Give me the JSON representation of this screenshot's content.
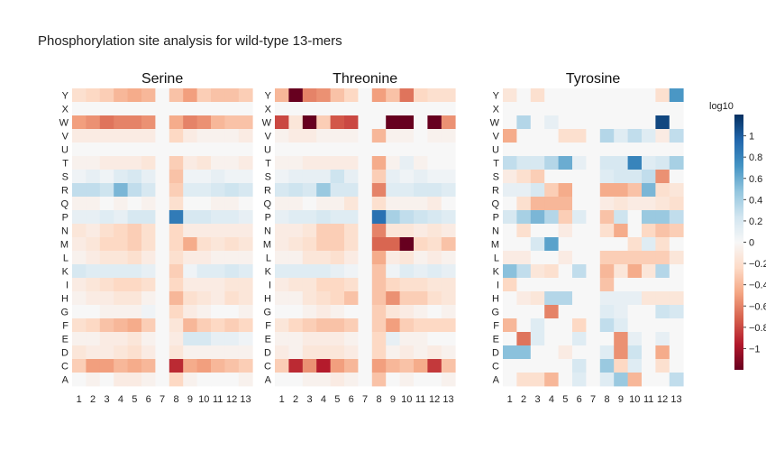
{
  "title": "Phosphorylation site analysis for wild-type 13-mers",
  "chart_data": {
    "type": "heatmap",
    "title": "Phosphorylation site analysis for wild-type 13-mers",
    "rows": [
      "Y",
      "X",
      "W",
      "V",
      "U",
      "T",
      "S",
      "R",
      "Q",
      "P",
      "N",
      "M",
      "L",
      "K",
      "I",
      "H",
      "G",
      "F",
      "E",
      "D",
      "C",
      "A"
    ],
    "columns": [
      "1",
      "2",
      "3",
      "4",
      "5",
      "6",
      "7",
      "8",
      "9",
      "10",
      "11",
      "12",
      "13"
    ],
    "colorbar": {
      "title": "log10",
      "range": [
        -1.2,
        1.2
      ],
      "ticks": [
        "1",
        "0.8",
        "0.6",
        "0.4",
        "0.2",
        "0",
        "−0.2",
        "−0.4",
        "−0.6",
        "−0.8",
        "−1"
      ],
      "tick_values": [
        1,
        0.8,
        0.6,
        0.4,
        0.2,
        0,
        -0.2,
        -0.4,
        -0.6,
        -0.8,
        -1
      ],
      "colorscale": "RdBu"
    },
    "panels": [
      {
        "name": "Serine",
        "values": [
          [
            -0.2,
            -0.25,
            -0.3,
            -0.4,
            -0.45,
            -0.4,
            0,
            -0.35,
            -0.5,
            -0.3,
            -0.35,
            -0.35,
            -0.3
          ],
          [
            0,
            0,
            0,
            0,
            0,
            0,
            0,
            0,
            0,
            0,
            0,
            0,
            0
          ],
          [
            -0.5,
            -0.55,
            -0.65,
            -0.6,
            -0.6,
            -0.55,
            0,
            -0.45,
            -0.6,
            -0.55,
            -0.4,
            -0.35,
            -0.35
          ],
          [
            -0.1,
            -0.1,
            -0.1,
            -0.1,
            -0.1,
            -0.1,
            0,
            -0.25,
            -0.1,
            -0.05,
            -0.05,
            -0.05,
            -0.1
          ],
          [
            0,
            0,
            0,
            0,
            0,
            0,
            0,
            0,
            0,
            0,
            0,
            0,
            0
          ],
          [
            -0.05,
            -0.05,
            -0.1,
            -0.1,
            -0.1,
            -0.15,
            0,
            -0.3,
            -0.1,
            -0.15,
            -0.05,
            -0.05,
            -0.1
          ],
          [
            0.05,
            0.1,
            0.05,
            0.15,
            0.2,
            0.1,
            0,
            -0.35,
            0.05,
            0.05,
            0.1,
            0.05,
            0.05
          ],
          [
            0.3,
            0.3,
            0.25,
            0.55,
            0.3,
            0.2,
            0,
            -0.3,
            0.15,
            0.15,
            0.2,
            0.25,
            0.2
          ],
          [
            -0.05,
            -0.05,
            0,
            -0.05,
            0,
            -0.05,
            0,
            -0.2,
            0,
            0,
            -0.05,
            -0.05,
            0
          ],
          [
            0.1,
            0.1,
            0.15,
            0.1,
            0.2,
            0.2,
            0,
            0.85,
            0.2,
            0.2,
            0.15,
            0.15,
            0.1
          ],
          [
            -0.15,
            -0.1,
            -0.2,
            -0.25,
            -0.3,
            -0.2,
            0,
            -0.25,
            -0.1,
            -0.1,
            -0.1,
            -0.1,
            -0.1
          ],
          [
            -0.1,
            -0.15,
            -0.25,
            -0.25,
            -0.3,
            -0.2,
            0,
            -0.25,
            -0.45,
            -0.2,
            -0.15,
            -0.2,
            -0.15
          ],
          [
            -0.05,
            -0.1,
            -0.15,
            -0.15,
            -0.2,
            -0.1,
            0,
            -0.2,
            -0.1,
            -0.1,
            -0.05,
            -0.05,
            -0.05
          ],
          [
            0.2,
            0.15,
            0.15,
            0.15,
            0.15,
            0.1,
            0,
            -0.3,
            0.05,
            0.15,
            0.15,
            0.2,
            0.15
          ],
          [
            -0.1,
            -0.15,
            -0.2,
            -0.25,
            -0.25,
            -0.2,
            0,
            -0.25,
            -0.1,
            -0.1,
            -0.1,
            -0.15,
            -0.15
          ],
          [
            -0.05,
            -0.1,
            -0.1,
            -0.15,
            -0.15,
            -0.05,
            0,
            -0.4,
            -0.2,
            -0.15,
            -0.1,
            -0.2,
            -0.15
          ],
          [
            0,
            0,
            -0.05,
            -0.05,
            -0.05,
            0.05,
            0,
            -0.25,
            -0.1,
            -0.05,
            0,
            0,
            -0.05
          ],
          [
            -0.2,
            -0.25,
            -0.35,
            -0.4,
            -0.45,
            -0.3,
            0,
            -0.15,
            -0.4,
            -0.3,
            -0.25,
            -0.3,
            -0.25
          ],
          [
            -0.05,
            -0.05,
            -0.1,
            -0.1,
            -0.15,
            -0.05,
            0,
            -0.1,
            0.2,
            0.2,
            0.1,
            0.1,
            0.05
          ],
          [
            -0.15,
            -0.1,
            -0.1,
            -0.15,
            -0.2,
            -0.1,
            0,
            -0.15,
            -0.05,
            -0.05,
            -0.05,
            -0.05,
            -0.05
          ],
          [
            -0.3,
            -0.5,
            -0.5,
            -0.4,
            -0.45,
            -0.4,
            0,
            -0.9,
            -0.45,
            -0.5,
            -0.4,
            -0.35,
            -0.3
          ],
          [
            0,
            -0.05,
            0,
            -0.1,
            -0.1,
            -0.05,
            0,
            -0.25,
            -0.05,
            0,
            0,
            0,
            -0.05
          ]
        ]
      },
      {
        "name": "Threonine",
        "values": [
          [
            -0.4,
            -1.2,
            -0.6,
            -0.55,
            -0.35,
            -0.25,
            0,
            -0.5,
            -0.35,
            -0.65,
            -0.25,
            -0.2,
            -0.2
          ],
          [
            0,
            0,
            0,
            0,
            0,
            0,
            0,
            0,
            0,
            0,
            0,
            0,
            0
          ],
          [
            -0.8,
            -0.15,
            -1.2,
            -0.3,
            -0.75,
            -0.8,
            0,
            0,
            -1.2,
            -1.2,
            0,
            -1.2,
            -0.55
          ],
          [
            -0.05,
            -0.1,
            -0.1,
            -0.05,
            -0.05,
            -0.05,
            0,
            -0.4,
            -0.05,
            -0.05,
            0,
            -0.05,
            -0.05
          ],
          [
            0,
            0,
            0,
            0,
            0,
            0,
            0,
            0,
            0,
            0,
            0,
            0,
            0
          ],
          [
            -0.05,
            -0.05,
            -0.1,
            -0.1,
            -0.1,
            -0.1,
            0,
            -0.45,
            -0.05,
            0.1,
            -0.05,
            0,
            0
          ],
          [
            0.05,
            0.1,
            0.1,
            0.1,
            0.25,
            0.1,
            0,
            -0.3,
            0.1,
            0.05,
            0.1,
            0.05,
            0.05
          ],
          [
            0.2,
            0.25,
            0.2,
            0.45,
            0.2,
            0.2,
            0,
            -0.6,
            0.15,
            0.15,
            0.2,
            0.2,
            0.15
          ],
          [
            -0.05,
            -0.05,
            0,
            -0.05,
            -0.05,
            -0.15,
            0,
            -0.2,
            -0.05,
            -0.05,
            -0.05,
            -0.1,
            0
          ],
          [
            0.1,
            0.15,
            0.15,
            0.2,
            0.15,
            0.15,
            0,
            0.9,
            0.4,
            0.3,
            0.25,
            0.2,
            0.15
          ],
          [
            -0.1,
            -0.1,
            -0.15,
            -0.3,
            -0.3,
            -0.2,
            0,
            -0.6,
            -0.15,
            -0.15,
            -0.1,
            -0.15,
            -0.1
          ],
          [
            -0.1,
            -0.15,
            -0.2,
            -0.3,
            -0.3,
            -0.2,
            0,
            -0.7,
            -0.7,
            -1.3,
            -0.25,
            -0.2,
            -0.35
          ],
          [
            -0.05,
            -0.05,
            -0.15,
            -0.15,
            -0.2,
            -0.1,
            0,
            -0.45,
            -0.1,
            -0.15,
            -0.05,
            -0.1,
            -0.05
          ],
          [
            0.15,
            0.15,
            0.15,
            0.15,
            0.1,
            0.05,
            0,
            -0.35,
            0.05,
            0.15,
            0.1,
            0.15,
            0.1
          ],
          [
            -0.1,
            -0.15,
            -0.15,
            -0.25,
            -0.25,
            -0.2,
            0,
            -0.35,
            -0.25,
            -0.2,
            -0.2,
            -0.15,
            -0.15
          ],
          [
            -0.05,
            -0.05,
            -0.15,
            -0.2,
            -0.25,
            -0.35,
            0,
            -0.35,
            -0.55,
            -0.3,
            -0.3,
            -0.2,
            -0.15
          ],
          [
            0,
            0,
            -0.05,
            -0.1,
            -0.05,
            0,
            0,
            -0.3,
            -0.15,
            -0.1,
            -0.05,
            0,
            -0.05
          ],
          [
            -0.15,
            -0.25,
            -0.3,
            -0.35,
            -0.35,
            -0.3,
            0,
            -0.3,
            -0.5,
            -0.3,
            -0.25,
            -0.25,
            -0.25
          ],
          [
            -0.05,
            -0.05,
            -0.1,
            -0.1,
            -0.1,
            -0.05,
            0,
            -0.25,
            0.1,
            -0.05,
            -0.05,
            0,
            0
          ],
          [
            -0.1,
            -0.05,
            -0.15,
            -0.15,
            -0.15,
            -0.1,
            0,
            -0.25,
            -0.05,
            -0.1,
            -0.05,
            -0.1,
            -0.05
          ],
          [
            -0.3,
            -0.9,
            -0.55,
            -0.95,
            -0.5,
            -0.4,
            0,
            -0.5,
            -0.4,
            -0.35,
            -0.45,
            -0.85,
            -0.35
          ],
          [
            0,
            0,
            -0.05,
            -0.05,
            -0.1,
            -0.05,
            0,
            -0.35,
            0,
            -0.05,
            0,
            0,
            -0.05
          ]
        ]
      },
      {
        "name": "Tyrosine",
        "values": [
          [
            -0.15,
            0,
            -0.2,
            0,
            0,
            0,
            0,
            0,
            0,
            0,
            0,
            -0.2,
            0.7
          ],
          [
            0,
            0,
            0,
            0,
            0,
            0,
            0,
            0,
            0,
            0,
            0,
            0,
            0
          ],
          [
            0,
            0.35,
            0,
            0.1,
            0,
            0,
            0,
            0,
            0,
            0,
            0,
            1.1,
            0
          ],
          [
            -0.45,
            0,
            0,
            0,
            -0.2,
            -0.2,
            0,
            0.35,
            0.15,
            0.3,
            0.15,
            -0.1,
            0.3
          ],
          [
            0,
            0,
            0,
            0,
            0,
            0,
            0,
            0,
            0,
            0,
            0,
            0,
            0
          ],
          [
            0.3,
            0.2,
            0.2,
            0.35,
            0.6,
            0.1,
            0,
            0.2,
            0.2,
            0.8,
            0.15,
            0.2,
            0.4
          ],
          [
            -0.1,
            -0.2,
            -0.3,
            0,
            0,
            0,
            0,
            0.15,
            0.2,
            0.2,
            0.3,
            -0.55,
            0
          ],
          [
            0.1,
            0.1,
            0.2,
            -0.3,
            -0.45,
            0,
            0,
            -0.45,
            -0.45,
            -0.35,
            0.55,
            -0.2,
            -0.15
          ],
          [
            0,
            -0.2,
            -0.4,
            -0.4,
            -0.4,
            0,
            0,
            -0.1,
            -0.15,
            -0.1,
            -0.1,
            -0.15,
            -0.2
          ],
          [
            0.2,
            0.4,
            0.55,
            0.35,
            -0.3,
            0.15,
            0,
            -0.35,
            0.25,
            0,
            0.45,
            0.45,
            0.3
          ],
          [
            0,
            -0.2,
            0,
            0,
            -0.1,
            0,
            0,
            -0.2,
            -0.45,
            0,
            -0.25,
            -0.35,
            -0.3
          ],
          [
            0,
            0,
            0.2,
            0.65,
            0,
            0,
            0,
            0,
            0,
            -0.2,
            0.15,
            -0.2,
            0
          ],
          [
            -0.1,
            -0.1,
            0,
            0,
            -0.1,
            0,
            0,
            -0.3,
            -0.3,
            -0.3,
            -0.3,
            -0.3,
            -0.15
          ],
          [
            0.5,
            0.3,
            -0.15,
            -0.2,
            0,
            0.3,
            0,
            -0.4,
            -0.15,
            -0.45,
            -0.15,
            0.35,
            0
          ],
          [
            -0.25,
            0,
            0,
            0,
            0,
            0,
            0,
            -0.35,
            0,
            0,
            0,
            0,
            0
          ],
          [
            0,
            -0.1,
            -0.15,
            0.35,
            0.35,
            0,
            0,
            0.1,
            0.1,
            0.1,
            -0.15,
            -0.15,
            -0.15
          ],
          [
            0,
            0,
            0,
            -0.6,
            0,
            0,
            0,
            0.15,
            0.1,
            0,
            0,
            0.25,
            0.2
          ],
          [
            -0.4,
            0,
            0.15,
            0,
            0,
            -0.25,
            0,
            0.3,
            0.15,
            0,
            0,
            0,
            0
          ],
          [
            0,
            -0.65,
            0.15,
            0,
            0,
            0.15,
            0,
            0,
            -0.55,
            0.1,
            0,
            0.1,
            0
          ],
          [
            0.5,
            0.5,
            0,
            0,
            -0.1,
            0,
            0,
            0.15,
            -0.55,
            0.25,
            0,
            -0.45,
            0
          ],
          [
            0,
            0,
            0,
            0,
            0,
            0.2,
            0,
            0.45,
            -0.25,
            0.15,
            0,
            -0.2,
            0
          ],
          [
            0,
            -0.2,
            -0.2,
            -0.4,
            0,
            0.15,
            0,
            0.15,
            0.45,
            -0.4,
            0,
            0,
            0.3
          ]
        ]
      }
    ]
  }
}
